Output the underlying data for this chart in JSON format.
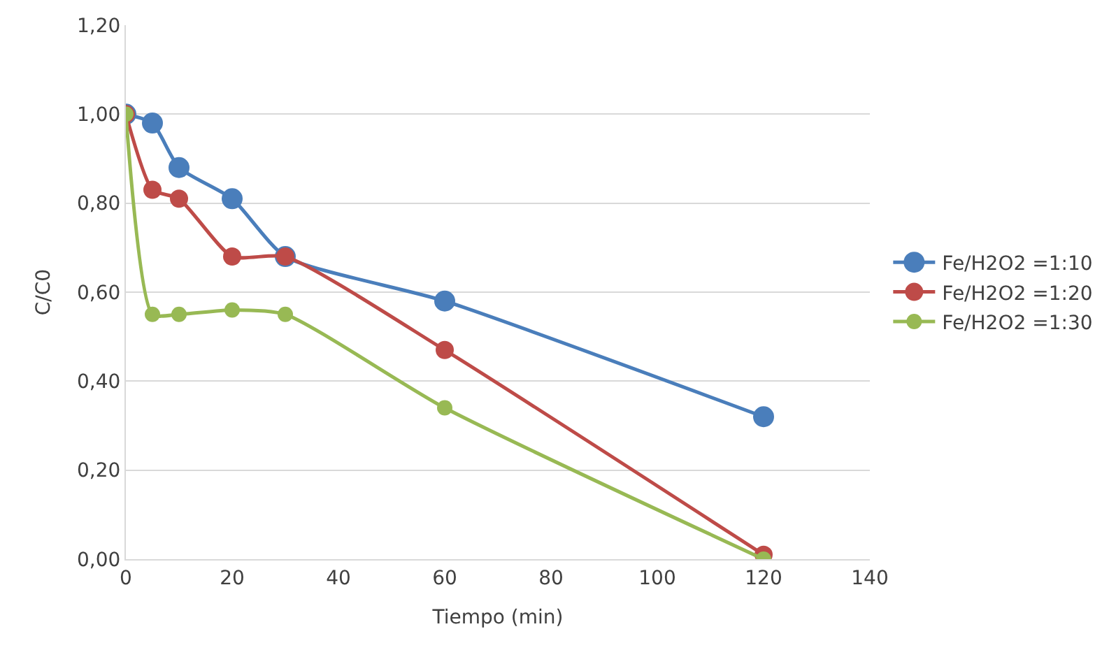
{
  "chart_data": {
    "type": "line",
    "xlabel": "Tiempo (min)",
    "ylabel": "C/C0",
    "x": [
      0,
      5,
      10,
      20,
      30,
      60,
      120
    ],
    "series": [
      {
        "name": "Fe/H2O2 =1:10",
        "color": "#4a7ebb",
        "values": [
          1.0,
          0.98,
          0.88,
          0.81,
          0.68,
          0.58,
          0.32
        ]
      },
      {
        "name": "Fe/H2O2 =1:20",
        "color": "#be4b48",
        "values": [
          1.0,
          0.83,
          0.81,
          0.68,
          0.68,
          0.47,
          0.01
        ]
      },
      {
        "name": "Fe/H2O2 =1:30",
        "color": "#98b954",
        "values": [
          1.0,
          0.55,
          0.55,
          0.56,
          0.55,
          0.34,
          0.0
        ]
      }
    ],
    "xlim": [
      0,
      140
    ],
    "xticks": [
      0,
      20,
      40,
      60,
      80,
      100,
      120,
      140
    ],
    "ylim": [
      0,
      1.2
    ],
    "yticks": [
      {
        "value": 0,
        "label": "0,00"
      },
      {
        "value": 0.2,
        "label": "0,20"
      },
      {
        "value": 0.4,
        "label": "0,40"
      },
      {
        "value": 0.6,
        "label": "0,60"
      },
      {
        "value": 0.8,
        "label": "0,80"
      },
      {
        "value": 1.0,
        "label": "1,00"
      },
      {
        "value": 1.2,
        "label": "1,20"
      }
    ],
    "grid": "y",
    "legend": "right",
    "marker": "circle",
    "line_style": "solid"
  }
}
